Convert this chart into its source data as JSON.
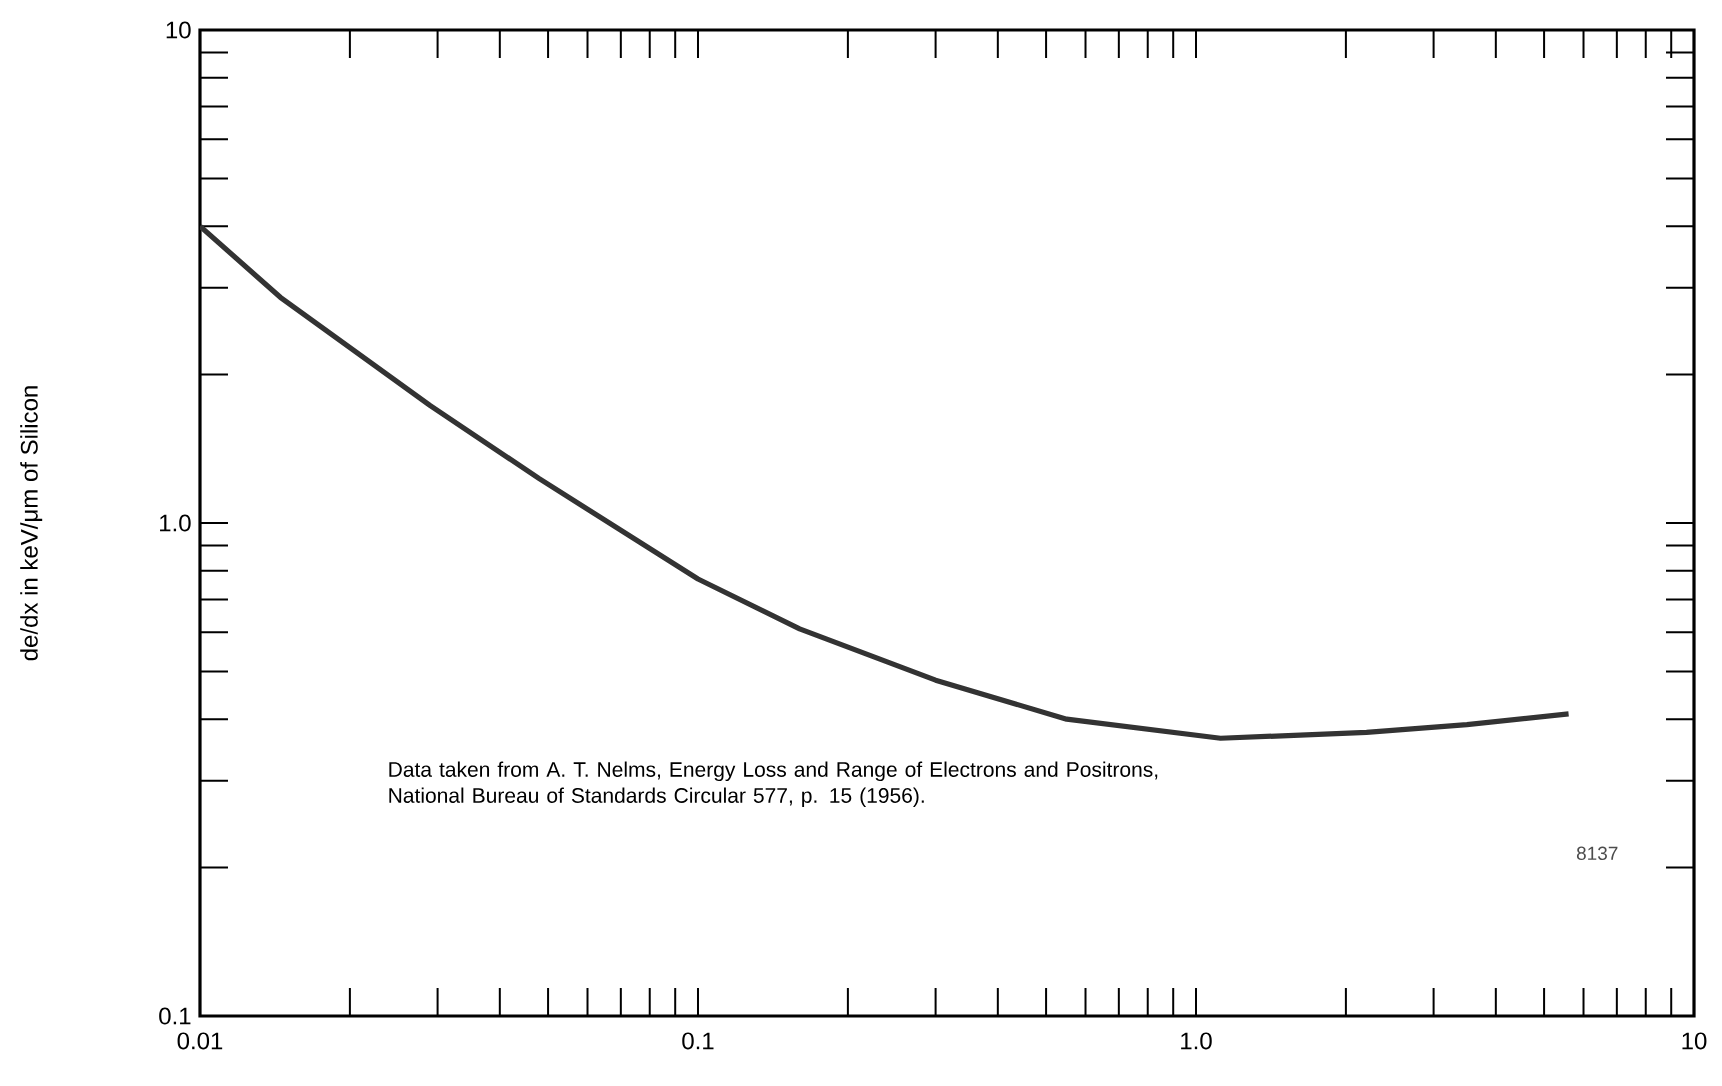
{
  "chart_data": {
    "type": "line",
    "ylabel": "de/dx in keV/μm of Silicon",
    "annotations": [
      "Data taken from A. T. Nelms, Energy Loss and Range of Electrons and Positrons, National Bureau of Standards Circular 577, p. 15 (1956).",
      "8137"
    ],
    "x": [
      0.01,
      0.0145,
      0.029,
      0.048,
      0.1,
      0.16,
      0.3,
      0.55,
      1.12,
      2.2,
      3.5,
      5.6
    ],
    "series": [
      {
        "color": "#333333",
        "values": [
          4.0,
          2.87,
          1.73,
          1.23,
          0.77,
          0.61,
          0.48,
          0.4,
          0.366,
          0.376,
          0.39,
          0.41
        ]
      }
    ],
    "xlim": [
      0.01,
      10
    ],
    "ylim": [
      0.1,
      10
    ],
    "xticks": [
      0.01,
      {
        "value": 0.02,
        "label": null
      },
      {
        "value": 0.03,
        "label": null
      },
      {
        "value": 0.04,
        "label": null
      },
      {
        "value": 0.05,
        "label": null
      },
      {
        "value": 0.06,
        "label": null
      },
      {
        "value": 0.07,
        "label": null
      },
      {
        "value": 0.08,
        "label": null
      },
      {
        "value": 0.09,
        "label": null
      },
      0.1,
      {
        "value": 0.2,
        "label": null
      },
      {
        "value": 0.3,
        "label": null
      },
      {
        "value": 0.4,
        "label": null
      },
      {
        "value": 0.5,
        "label": null
      },
      {
        "value": 0.6,
        "label": null
      },
      {
        "value": 0.7,
        "label": null
      },
      {
        "value": 0.8,
        "label": null
      },
      {
        "value": 0.9,
        "label": null
      },
      {
        "value": 1,
        "label": "1.0"
      },
      {
        "value": 2,
        "label": null
      },
      {
        "value": 3,
        "label": null
      },
      {
        "value": 4,
        "label": null
      },
      {
        "value": 5,
        "label": null
      },
      {
        "value": 6,
        "label": null
      },
      {
        "value": 7,
        "label": null
      },
      {
        "value": 8,
        "label": null
      },
      {
        "value": 9,
        "label": null
      },
      10
    ],
    "yticks": [
      0.1,
      {
        "value": 0.2,
        "label": null
      },
      {
        "value": 0.3,
        "label": null
      },
      {
        "value": 0.4,
        "label": null
      },
      {
        "value": 0.5,
        "label": null
      },
      {
        "value": 0.6,
        "label": null
      },
      {
        "value": 0.7,
        "label": null
      },
      {
        "value": 0.8,
        "label": null
      },
      {
        "value": 0.9,
        "label": null
      },
      {
        "value": 1,
        "label": "1.0"
      },
      {
        "value": 2,
        "label": null
      },
      {
        "value": 3,
        "label": null
      },
      {
        "value": 4,
        "label": null
      },
      {
        "value": 5,
        "label": null
      },
      {
        "value": 6,
        "label": null
      },
      {
        "value": 7,
        "label": null
      },
      {
        "value": 8,
        "label": null
      },
      {
        "value": 9,
        "label": null
      },
      10
    ],
    "log": "xy",
    "marker": "none",
    "line_style": "solid"
  }
}
